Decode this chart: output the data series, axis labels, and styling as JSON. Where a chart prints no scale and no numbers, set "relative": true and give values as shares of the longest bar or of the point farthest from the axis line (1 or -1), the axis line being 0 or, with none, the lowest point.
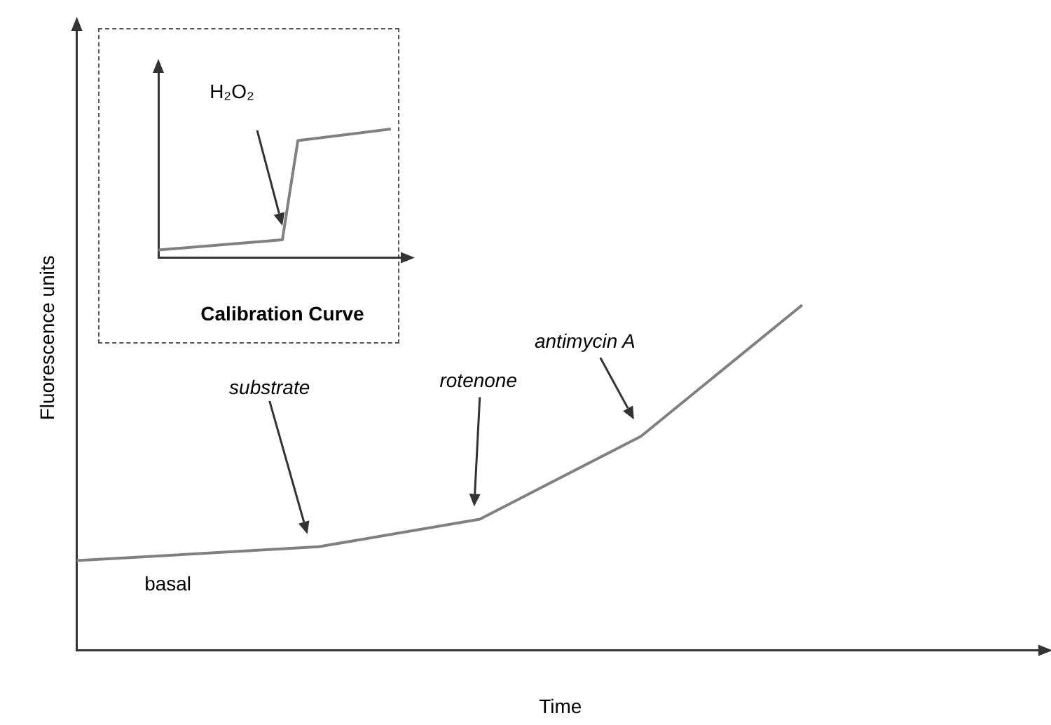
{
  "chart_data": [
    {
      "type": "line",
      "xlabel": "Time",
      "ylabel": "Fluorescence units",
      "relative": true,
      "categories": [
        null,
        null,
        null,
        null,
        null,
        null,
        null,
        null,
        null,
        null,
        null,
        null,
        null
      ],
      "series": [
        {
          "color": "#808080",
          "values": [
            0.26,
            null,
            null,
            0.3,
            null,
            0.38,
            null,
            0.62,
            null,
            1,
            null,
            null,
            null
          ]
        }
      ],
      "annotations": [
        "basal",
        "substrate",
        "rotenone",
        "antimycin A"
      ]
    },
    {
      "type": "line",
      "xlabel": "Calibration Curve",
      "relative": true,
      "categories": [
        null,
        null,
        null,
        null,
        null,
        null,
        null,
        null,
        null,
        null,
        null,
        null,
        null,
        null,
        null,
        null,
        null
      ],
      "series": [
        {
          "color": "#808080",
          "values": [
            0.06,
            null,
            null,
            null,
            null,
            null,
            null,
            null,
            0.14,
            0.91,
            null,
            null,
            null,
            null,
            null,
            1,
            null
          ]
        }
      ],
      "annotations": [
        "H₂O₂"
      ]
    }
  ]
}
